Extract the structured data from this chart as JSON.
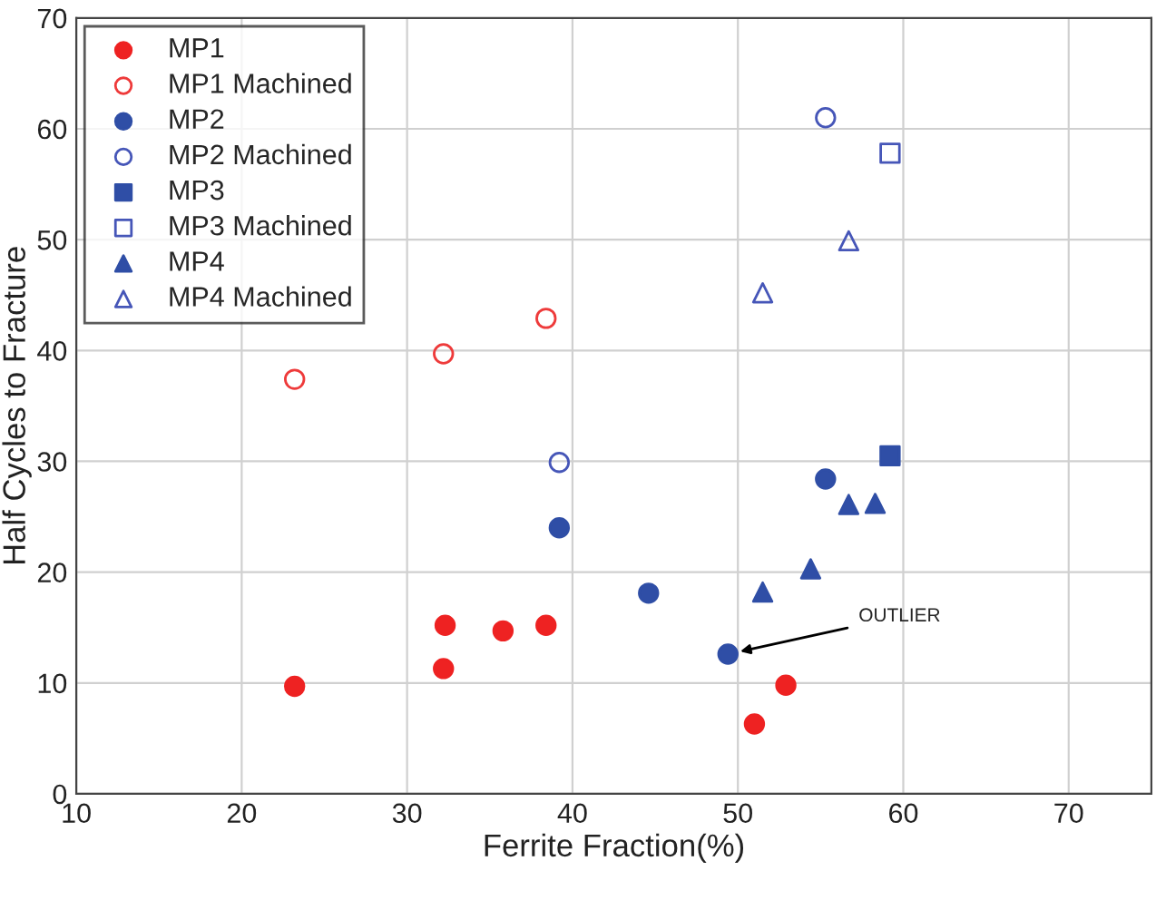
{
  "chart_data": {
    "type": "scatter",
    "xlabel": "Ferrite Fraction(%)",
    "ylabel": "Half Cycles to Fracture",
    "xlim": [
      10,
      75
    ],
    "xticks": [
      10,
      20,
      30,
      40,
      50,
      60,
      70
    ],
    "ylim": [
      0,
      70
    ],
    "yticks": [
      0,
      10,
      20,
      30,
      40,
      50,
      60,
      70
    ],
    "grid": true,
    "legend": "top left",
    "annotations": [
      {
        "text": "OUTLIER",
        "x": 49.4,
        "y": 12.6
      }
    ],
    "series": [
      {
        "name": "MP1",
        "color": "#ee2222",
        "marker": "circle",
        "x": [
          23.2,
          32.3,
          32.2,
          35.8,
          38.4,
          52.9,
          51.0
        ],
        "values": [
          9.7,
          15.2,
          11.3,
          14.7,
          15.2,
          9.8,
          6.3
        ]
      },
      {
        "name": "MP1 Machined",
        "color": "#ee3a3a",
        "marker": "circle-open",
        "x": [
          23.2,
          32.2,
          38.4
        ],
        "values": [
          37.4,
          39.7,
          42.9
        ]
      },
      {
        "name": "MP2",
        "color": "#2f4ea6",
        "marker": "circle",
        "x": [
          39.2,
          44.6,
          49.4,
          55.3
        ],
        "values": [
          24.0,
          18.1,
          12.6,
          28.4
        ]
      },
      {
        "name": "MP2 Machined",
        "color": "#4656b8",
        "marker": "circle-open",
        "x": [
          39.2,
          55.3
        ],
        "values": [
          29.9,
          61.0
        ]
      },
      {
        "name": "MP3",
        "color": "#2f4ea6",
        "marker": "square",
        "x": [
          59.2
        ],
        "values": [
          30.5
        ]
      },
      {
        "name": "MP3 Machined",
        "color": "#4656b8",
        "marker": "square-open",
        "x": [
          59.2
        ],
        "values": [
          57.8
        ]
      },
      {
        "name": "MP4",
        "color": "#2f4ea6",
        "marker": "triangle",
        "x": [
          51.5,
          54.4,
          56.7,
          58.3
        ],
        "values": [
          18.2,
          20.3,
          26.1,
          26.2
        ]
      },
      {
        "name": "MP4 Machined",
        "color": "#4656b8",
        "marker": "triangle-open",
        "x": [
          51.5,
          56.7
        ],
        "values": [
          45.2,
          49.9
        ]
      }
    ]
  }
}
